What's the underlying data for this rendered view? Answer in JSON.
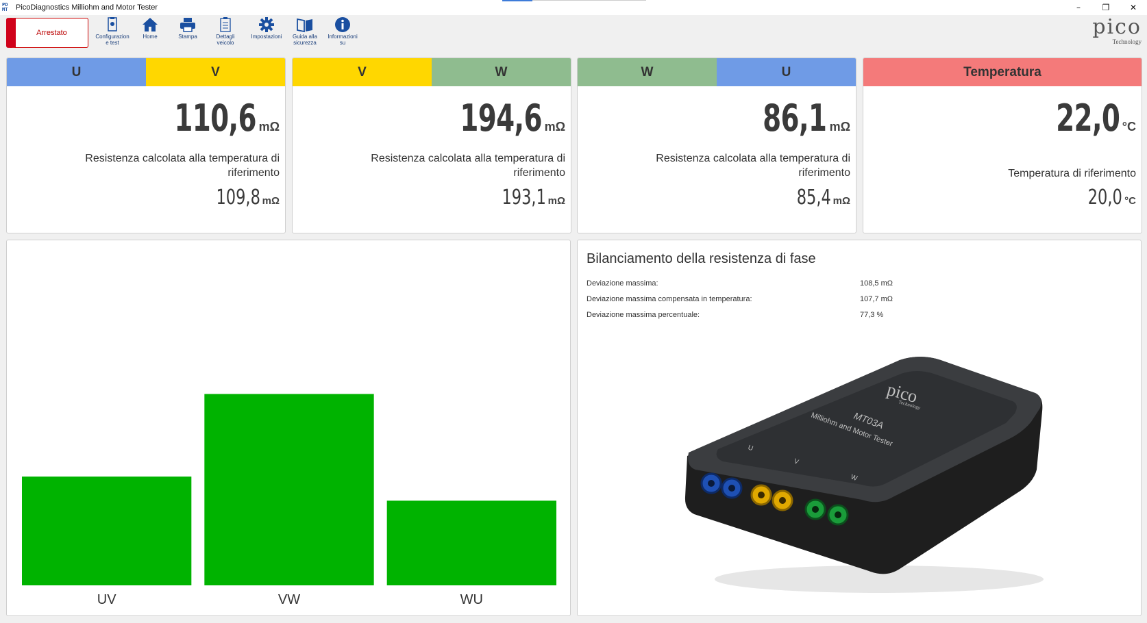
{
  "window": {
    "title": "PicoDiagnostics Milliohm and Motor Tester",
    "icon_text": "PD\nMT",
    "minimize": "–",
    "restore": "❐",
    "close": "✕"
  },
  "toolbar": {
    "status": "Arrestato",
    "tools": [
      {
        "label": "Configurazion\ne test",
        "icon": "config-icon"
      },
      {
        "label": "Home",
        "icon": "home-icon"
      },
      {
        "label": "Stampa",
        "icon": "print-icon"
      },
      {
        "label": "Dettagli\nveicolo",
        "icon": "clipboard-icon"
      },
      {
        "label": "Impostazioni",
        "icon": "gear-icon"
      },
      {
        "label": "Guida alla\nsicurezza",
        "icon": "book-icon"
      },
      {
        "label": "Informazioni\nsu",
        "icon": "info-icon"
      }
    ],
    "logo": {
      "word": "pico",
      "sub": "Technology"
    }
  },
  "colors": {
    "U": "#6f9be6",
    "V": "#ffd700",
    "W": "#8fbc8f",
    "Temperatura": "#f47a7a",
    "bar": "#00b300",
    "status": "#d0021b"
  },
  "cards": [
    {
      "head": [
        "U",
        "V"
      ],
      "value": "110,6",
      "unit": "mΩ",
      "desc": "Resistenza calcolata alla temperatura di riferimento",
      "ref_value": "109,8",
      "ref_unit": "mΩ"
    },
    {
      "head": [
        "V",
        "W"
      ],
      "value": "194,6",
      "unit": "mΩ",
      "desc": "Resistenza calcolata alla temperatura di riferimento",
      "ref_value": "193,1",
      "ref_unit": "mΩ"
    },
    {
      "head": [
        "W",
        "U"
      ],
      "value": "86,1",
      "unit": "mΩ",
      "desc": "Resistenza calcolata alla temperatura di riferimento",
      "ref_value": "85,4",
      "ref_unit": "mΩ"
    },
    {
      "head": [
        "Temperatura"
      ],
      "value": "22,0",
      "unit": "°C",
      "desc": "Temperatura di riferimento",
      "ref_value": "20,0",
      "ref_unit": "°C"
    }
  ],
  "chart_data": {
    "type": "bar",
    "categories": [
      "UV",
      "VW",
      "WU"
    ],
    "values": [
      110.6,
      194.6,
      86.1
    ],
    "title": "",
    "xlabel": "",
    "ylabel": "",
    "ylim": [
      0,
      330
    ],
    "grid": false
  },
  "balance": {
    "title": "Bilanciamento della resistenza di fase",
    "rows": [
      {
        "label": "Deviazione massima:",
        "value": "108,5 mΩ"
      },
      {
        "label": "Deviazione massima compensata in temperatura:",
        "value": "107,7 mΩ"
      },
      {
        "label": "Deviazione massima percentuale:",
        "value": "77,3 %"
      }
    ],
    "device": {
      "brand": "pico",
      "brand_sub": "Technology",
      "model": "MT03A",
      "name": "Milliohm and Motor Tester",
      "terminals": [
        "U",
        "V",
        "W"
      ]
    }
  }
}
